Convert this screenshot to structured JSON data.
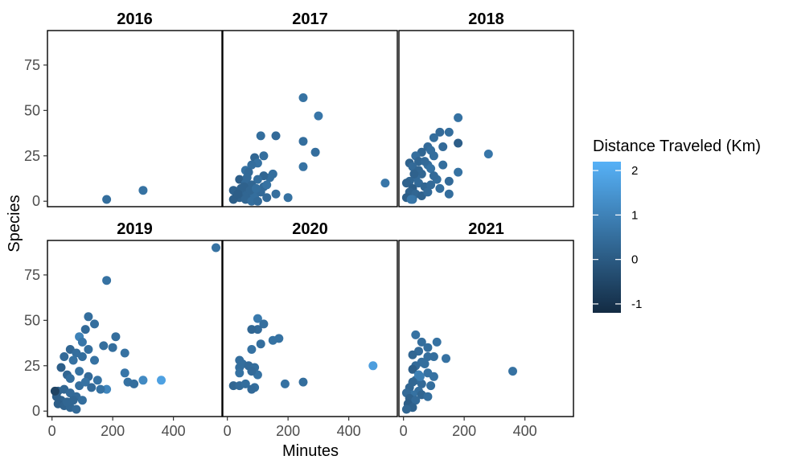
{
  "chart_data": {
    "type": "scatter",
    "xlabel": "Minutes",
    "ylabel": "Species",
    "xlim": [
      -15,
      560
    ],
    "ylim": [
      -3,
      94
    ],
    "xticks": [
      0,
      200,
      400
    ],
    "yticks": [
      0,
      25,
      50,
      75
    ],
    "legend": {
      "title": "Distance Traveled (Km)",
      "position": "right",
      "ticks": [
        -1,
        0,
        1,
        2
      ],
      "range": [
        -1.2,
        2.2
      ],
      "color_low": "#132B43",
      "color_high": "#56B1F7"
    },
    "facets": [
      {
        "title": "2016",
        "points": [
          [
            180,
            1,
            0.5
          ],
          [
            300,
            6,
            0.6
          ]
        ]
      },
      {
        "title": "2017",
        "points": [
          [
            250,
            57,
            0.6
          ],
          [
            300,
            47,
            0.7
          ],
          [
            110,
            36,
            0.5
          ],
          [
            160,
            36,
            0.4
          ],
          [
            250,
            33,
            0.5
          ],
          [
            290,
            27,
            0.5
          ],
          [
            90,
            24,
            0.3
          ],
          [
            120,
            25,
            0.5
          ],
          [
            100,
            21,
            0.6
          ],
          [
            80,
            20,
            0.5
          ],
          [
            250,
            19,
            0.6
          ],
          [
            150,
            15,
            0.5
          ],
          [
            140,
            13,
            0.5
          ],
          [
            120,
            14,
            0.3
          ],
          [
            60,
            17,
            0.6
          ],
          [
            70,
            16,
            0.4
          ],
          [
            40,
            12,
            0.1
          ],
          [
            100,
            12,
            0.5
          ],
          [
            60,
            10,
            0.4
          ],
          [
            80,
            9,
            0.3
          ],
          [
            120,
            8,
            0.4
          ],
          [
            160,
            4,
            0.5
          ],
          [
            200,
            2,
            0.6
          ],
          [
            520,
            10,
            0.7
          ],
          [
            30,
            3,
            0.2
          ],
          [
            50,
            5,
            0.3
          ],
          [
            20,
            6,
            0.2
          ],
          [
            70,
            4,
            0.3
          ],
          [
            40,
            2,
            0.2
          ],
          [
            90,
            3,
            0.5
          ],
          [
            110,
            5,
            0.4
          ],
          [
            60,
            1,
            0.3
          ],
          [
            130,
            2,
            0.4
          ],
          [
            80,
            0,
            0.5
          ],
          [
            20,
            1,
            0.1
          ],
          [
            45,
            7,
            0.2
          ],
          [
            35,
            4,
            0.1
          ],
          [
            100,
            0,
            0.4
          ],
          [
            55,
            8,
            0.2
          ],
          [
            75,
            6,
            0.3
          ],
          [
            95,
            7,
            0.5
          ],
          [
            130,
            9,
            0.6
          ],
          [
            65,
            13,
            0.4
          ]
        ]
      },
      {
        "title": "2018",
        "points": [
          [
            180,
            46,
            0.6
          ],
          [
            280,
            26,
            0.7
          ],
          [
            180,
            32,
            0.1
          ],
          [
            150,
            38,
            0.5
          ],
          [
            120,
            38,
            0.4
          ],
          [
            100,
            35,
            0.5
          ],
          [
            80,
            30,
            0.4
          ],
          [
            60,
            27,
            0.3
          ],
          [
            40,
            25,
            0.5
          ],
          [
            50,
            22,
            0.3
          ],
          [
            20,
            21,
            0.2
          ],
          [
            30,
            19,
            0.4
          ],
          [
            100,
            25,
            0.5
          ],
          [
            130,
            30,
            0.4
          ],
          [
            80,
            20,
            0.5
          ],
          [
            90,
            18,
            0.6
          ],
          [
            60,
            15,
            0.3
          ],
          [
            40,
            13,
            0.4
          ],
          [
            20,
            11,
            0.3
          ],
          [
            10,
            10,
            0.2
          ],
          [
            50,
            10,
            0.4
          ],
          [
            70,
            8,
            0.3
          ],
          [
            90,
            9,
            0.4
          ],
          [
            110,
            12,
            0.5
          ],
          [
            30,
            7,
            0.1
          ],
          [
            20,
            5,
            0.2
          ],
          [
            40,
            4,
            0.3
          ],
          [
            60,
            3,
            0.2
          ],
          [
            10,
            2,
            0.1
          ],
          [
            30,
            1,
            0.6
          ],
          [
            80,
            5,
            0.4
          ],
          [
            120,
            7,
            0.5
          ],
          [
            150,
            4,
            0.5
          ],
          [
            180,
            16,
            0.6
          ],
          [
            150,
            11,
            0.4
          ],
          [
            130,
            20,
            0.5
          ],
          [
            25,
            1,
            0.7
          ],
          [
            50,
            17,
            0.3
          ],
          [
            70,
            22,
            0.4
          ],
          [
            90,
            28,
            0.5
          ],
          [
            35,
            15,
            0.2
          ],
          [
            100,
            14,
            0.4
          ]
        ]
      },
      {
        "title": "2019",
        "points": [
          [
            540,
            90,
            0.6
          ],
          [
            180,
            72,
            0.6
          ],
          [
            120,
            52,
            0.5
          ],
          [
            140,
            48,
            0.5
          ],
          [
            110,
            45,
            0.4
          ],
          [
            90,
            41,
            1.0
          ],
          [
            100,
            38,
            0.7
          ],
          [
            170,
            36,
            0.5
          ],
          [
            200,
            35,
            0.5
          ],
          [
            210,
            41,
            0.5
          ],
          [
            240,
            32,
            0.6
          ],
          [
            120,
            34,
            0.5
          ],
          [
            60,
            34,
            0.3
          ],
          [
            80,
            32,
            0.5
          ],
          [
            40,
            30,
            0.4
          ],
          [
            70,
            28,
            0.6
          ],
          [
            100,
            30,
            0.5
          ],
          [
            140,
            28,
            0.6
          ],
          [
            30,
            24,
            0.1
          ],
          [
            50,
            20,
            0.3
          ],
          [
            60,
            18,
            0.5
          ],
          [
            90,
            22,
            0.6
          ],
          [
            120,
            19,
            0.4
          ],
          [
            150,
            17,
            0.6
          ],
          [
            240,
            21,
            0.7
          ],
          [
            250,
            16,
            0.6
          ],
          [
            270,
            15,
            0.5
          ],
          [
            300,
            17,
            1.2
          ],
          [
            360,
            17,
            1.8
          ],
          [
            180,
            12,
            1.1
          ],
          [
            20,
            11,
            0.2
          ],
          [
            40,
            12,
            0.3
          ],
          [
            60,
            10,
            0.4
          ],
          [
            80,
            8,
            0.4
          ],
          [
            100,
            6,
            0.5
          ],
          [
            30,
            6,
            0.2
          ],
          [
            20,
            4,
            0.1
          ],
          [
            40,
            3,
            0.2
          ],
          [
            60,
            2,
            0.3
          ],
          [
            80,
            1,
            0.4
          ],
          [
            15,
            8,
            0.1
          ],
          [
            10,
            11,
            -0.6
          ],
          [
            50,
            5,
            0.3
          ],
          [
            70,
            6,
            0.3
          ],
          [
            90,
            14,
            0.5
          ],
          [
            110,
            16,
            0.6
          ],
          [
            130,
            13,
            0.4
          ],
          [
            160,
            12,
            0.6
          ]
        ]
      },
      {
        "title": "2020",
        "points": [
          [
            100,
            51,
            0.8
          ],
          [
            120,
            48,
            0.5
          ],
          [
            100,
            45,
            0.4
          ],
          [
            80,
            45,
            0.3
          ],
          [
            170,
            40,
            0.6
          ],
          [
            150,
            39,
            0.6
          ],
          [
            110,
            37,
            0.5
          ],
          [
            80,
            34,
            0.6
          ],
          [
            40,
            28,
            0.5
          ],
          [
            50,
            26,
            0.5
          ],
          [
            70,
            25,
            0.4
          ],
          [
            40,
            24,
            0.5
          ],
          [
            90,
            24,
            0.5
          ],
          [
            40,
            21,
            0.6
          ],
          [
            100,
            20,
            0.6
          ],
          [
            80,
            22,
            0.4
          ],
          [
            480,
            25,
            1.7
          ],
          [
            20,
            14,
            0.3
          ],
          [
            40,
            14,
            0.4
          ],
          [
            60,
            15,
            0.5
          ],
          [
            90,
            13,
            0.5
          ],
          [
            80,
            12,
            0.4
          ],
          [
            190,
            15,
            0.6
          ],
          [
            250,
            16,
            0.5
          ]
        ]
      },
      {
        "title": "2021",
        "points": [
          [
            40,
            42,
            0.6
          ],
          [
            110,
            38,
            0.6
          ],
          [
            60,
            38,
            0.5
          ],
          [
            80,
            35,
            0.5
          ],
          [
            50,
            33,
            0.4
          ],
          [
            30,
            31,
            0.3
          ],
          [
            80,
            30,
            0.5
          ],
          [
            100,
            30,
            0.5
          ],
          [
            140,
            29,
            0.6
          ],
          [
            60,
            27,
            0.5
          ],
          [
            40,
            25,
            0.4
          ],
          [
            70,
            26,
            0.5
          ],
          [
            30,
            23,
            0.1
          ],
          [
            50,
            20,
            0.4
          ],
          [
            80,
            21,
            0.6
          ],
          [
            100,
            19,
            0.6
          ],
          [
            40,
            17,
            0.5
          ],
          [
            30,
            16,
            0.3
          ],
          [
            60,
            15,
            0.4
          ],
          [
            90,
            14,
            0.5
          ],
          [
            360,
            22,
            0.6
          ],
          [
            20,
            13,
            0.3
          ],
          [
            50,
            11,
            0.5
          ],
          [
            30,
            9,
            0.6
          ],
          [
            10,
            10,
            0.4
          ],
          [
            60,
            9,
            0.3
          ],
          [
            80,
            8,
            0.5
          ],
          [
            20,
            7,
            0.2
          ],
          [
            40,
            6,
            0.4
          ],
          [
            15,
            4,
            0.1
          ],
          [
            30,
            2,
            0.2
          ],
          [
            10,
            1,
            0.3
          ],
          [
            50,
            20,
            1.0
          ],
          [
            55,
            19,
            0.9
          ]
        ]
      }
    ]
  }
}
